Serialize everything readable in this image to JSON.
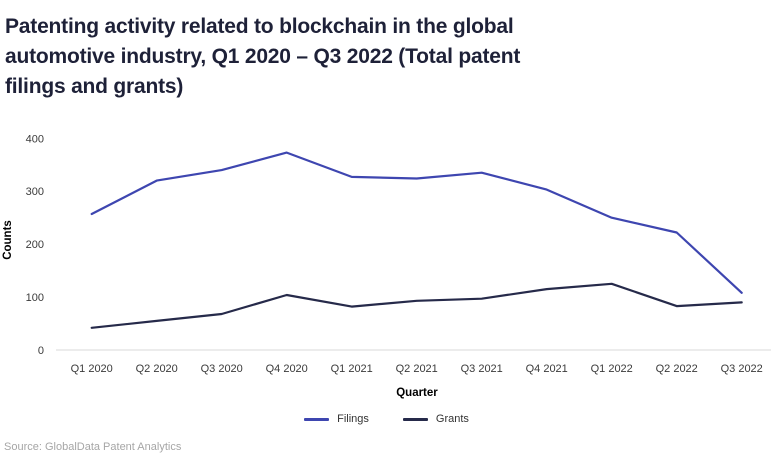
{
  "title_lines": [
    "Patenting activity related to blockchain in the global",
    "automotive industry, Q1 2020 – Q3 2022 (Total patent",
    "filings and grants)"
  ],
  "source": "Source: GlobalData Patent Analytics",
  "colors": {
    "filings_line": "#3e46b0",
    "grants_line": "#262a4a",
    "axis_line": "#d8d8d8",
    "tick_text": "#3a3a3a",
    "title_text": "#1e2138",
    "source_text": "#a6a6a6"
  },
  "chart_data": {
    "type": "line",
    "title": "Patenting activity related to blockchain in the global automotive industry, Q1 2020 – Q3 2022 (Total patent filings and grants)",
    "xlabel": "Quarter",
    "ylabel": "Counts",
    "categories": [
      "Q1 2020",
      "Q2 2020",
      "Q3 2020",
      "Q4 2020",
      "Q1 2021",
      "Q2 2021",
      "Q3 2021",
      "Q4 2021",
      "Q1 2022",
      "Q2 2022",
      "Q3 2022"
    ],
    "series": [
      {
        "name": "Filings",
        "color": "#3e46b0",
        "values": [
          257,
          320,
          340,
          373,
          327,
          324,
          335,
          303,
          250,
          222,
          108
        ]
      },
      {
        "name": "Grants",
        "color": "#262a4a",
        "values": [
          42,
          55,
          68,
          104,
          82,
          93,
          97,
          115,
          125,
          83,
          90
        ]
      }
    ],
    "ylim": [
      0,
      400
    ],
    "yticks": [
      0,
      100,
      200,
      300,
      400
    ],
    "grid": false,
    "legend_position": "bottom"
  }
}
